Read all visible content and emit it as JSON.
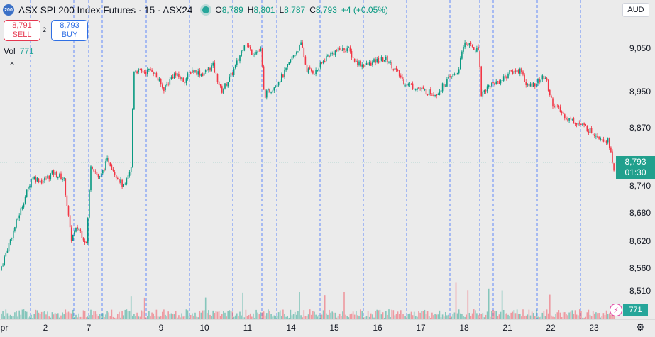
{
  "header": {
    "logo_text": "200",
    "title": "ASX SPI 200 Index Futures · 15 · ASX24",
    "ohlc": [
      {
        "key": "O",
        "value": "8,789"
      },
      {
        "key": "H",
        "value": "8,801"
      },
      {
        "key": "L",
        "value": "8,787"
      },
      {
        "key": "C",
        "value": "8,793"
      }
    ],
    "change": "+4 (+0.05%)"
  },
  "trade": {
    "sell_price": "8,791",
    "sell_label": "SELL",
    "spread": "2",
    "buy_price": "8,793",
    "buy_label": "BUY"
  },
  "volume_legend": {
    "label": "Vol",
    "value": "771"
  },
  "collapse_icon": "chevron-up-icon",
  "currency": "AUD",
  "price_marker": {
    "price": "8,793",
    "countdown": "01:30"
  },
  "volume_marker": "771",
  "colors": {
    "up": "#089981",
    "down": "#f23645",
    "background": "#ebebeb",
    "separator": "#2962ff"
  },
  "chart_data": {
    "type": "candlestick",
    "y_ticks": [
      "9,050",
      "8,950",
      "8,870",
      "8,740",
      "8,680",
      "8,620",
      "8,560",
      "8,510"
    ],
    "x_ticks": [
      "pr",
      "2",
      "7",
      "9",
      "10",
      "11",
      "14",
      "15",
      "16",
      "17",
      "18",
      "21",
      "22",
      "23"
    ],
    "last_price": 8793,
    "last_volume": 771,
    "anchors": [
      {
        "x": 0,
        "y": 8555
      },
      {
        "x": 15,
        "y": 8625
      },
      {
        "x": 30,
        "y": 8690
      },
      {
        "x": 45,
        "y": 8760
      },
      {
        "x": 60,
        "y": 8750
      },
      {
        "x": 75,
        "y": 8770
      },
      {
        "x": 90,
        "y": 8755
      },
      {
        "x": 100,
        "y": 8625
      },
      {
        "x": 110,
        "y": 8650
      },
      {
        "x": 122,
        "y": 8615
      },
      {
        "x": 128,
        "y": 8790
      },
      {
        "x": 140,
        "y": 8755
      },
      {
        "x": 152,
        "y": 8800
      },
      {
        "x": 165,
        "y": 8760
      },
      {
        "x": 175,
        "y": 8735
      },
      {
        "x": 185,
        "y": 8780
      },
      {
        "x": 188,
        "y": 9000
      },
      {
        "x": 200,
        "y": 8995
      },
      {
        "x": 215,
        "y": 9000
      },
      {
        "x": 230,
        "y": 8955
      },
      {
        "x": 245,
        "y": 8990
      },
      {
        "x": 260,
        "y": 8975
      },
      {
        "x": 270,
        "y": 9000
      },
      {
        "x": 285,
        "y": 8990
      },
      {
        "x": 300,
        "y": 9010
      },
      {
        "x": 312,
        "y": 8950
      },
      {
        "x": 325,
        "y": 8985
      },
      {
        "x": 335,
        "y": 9020
      },
      {
        "x": 345,
        "y": 9065
      },
      {
        "x": 355,
        "y": 9040
      },
      {
        "x": 368,
        "y": 9045
      },
      {
        "x": 372,
        "y": 8940
      },
      {
        "x": 385,
        "y": 8960
      },
      {
        "x": 400,
        "y": 8990
      },
      {
        "x": 412,
        "y": 9030
      },
      {
        "x": 425,
        "y": 9060
      },
      {
        "x": 432,
        "y": 9000
      },
      {
        "x": 445,
        "y": 8995
      },
      {
        "x": 460,
        "y": 9030
      },
      {
        "x": 475,
        "y": 9045
      },
      {
        "x": 490,
        "y": 9050
      },
      {
        "x": 500,
        "y": 9020
      },
      {
        "x": 515,
        "y": 9010
      },
      {
        "x": 530,
        "y": 9020
      },
      {
        "x": 545,
        "y": 9025
      },
      {
        "x": 555,
        "y": 9005
      },
      {
        "x": 570,
        "y": 8970
      },
      {
        "x": 585,
        "y": 8960
      },
      {
        "x": 600,
        "y": 8950
      },
      {
        "x": 615,
        "y": 8945
      },
      {
        "x": 630,
        "y": 8975
      },
      {
        "x": 645,
        "y": 8995
      },
      {
        "x": 655,
        "y": 9065
      },
      {
        "x": 668,
        "y": 9050
      },
      {
        "x": 675,
        "y": 9045
      },
      {
        "x": 678,
        "y": 8945
      },
      {
        "x": 690,
        "y": 8965
      },
      {
        "x": 705,
        "y": 8975
      },
      {
        "x": 720,
        "y": 8995
      },
      {
        "x": 735,
        "y": 9000
      },
      {
        "x": 742,
        "y": 8960
      },
      {
        "x": 755,
        "y": 8970
      },
      {
        "x": 768,
        "y": 8985
      },
      {
        "x": 778,
        "y": 8925
      },
      {
        "x": 790,
        "y": 8905
      },
      {
        "x": 800,
        "y": 8890
      },
      {
        "x": 815,
        "y": 8880
      },
      {
        "x": 830,
        "y": 8865
      },
      {
        "x": 845,
        "y": 8850
      },
      {
        "x": 858,
        "y": 8840
      },
      {
        "x": 865,
        "y": 8770
      },
      {
        "x": 868,
        "y": 8793
      }
    ]
  }
}
